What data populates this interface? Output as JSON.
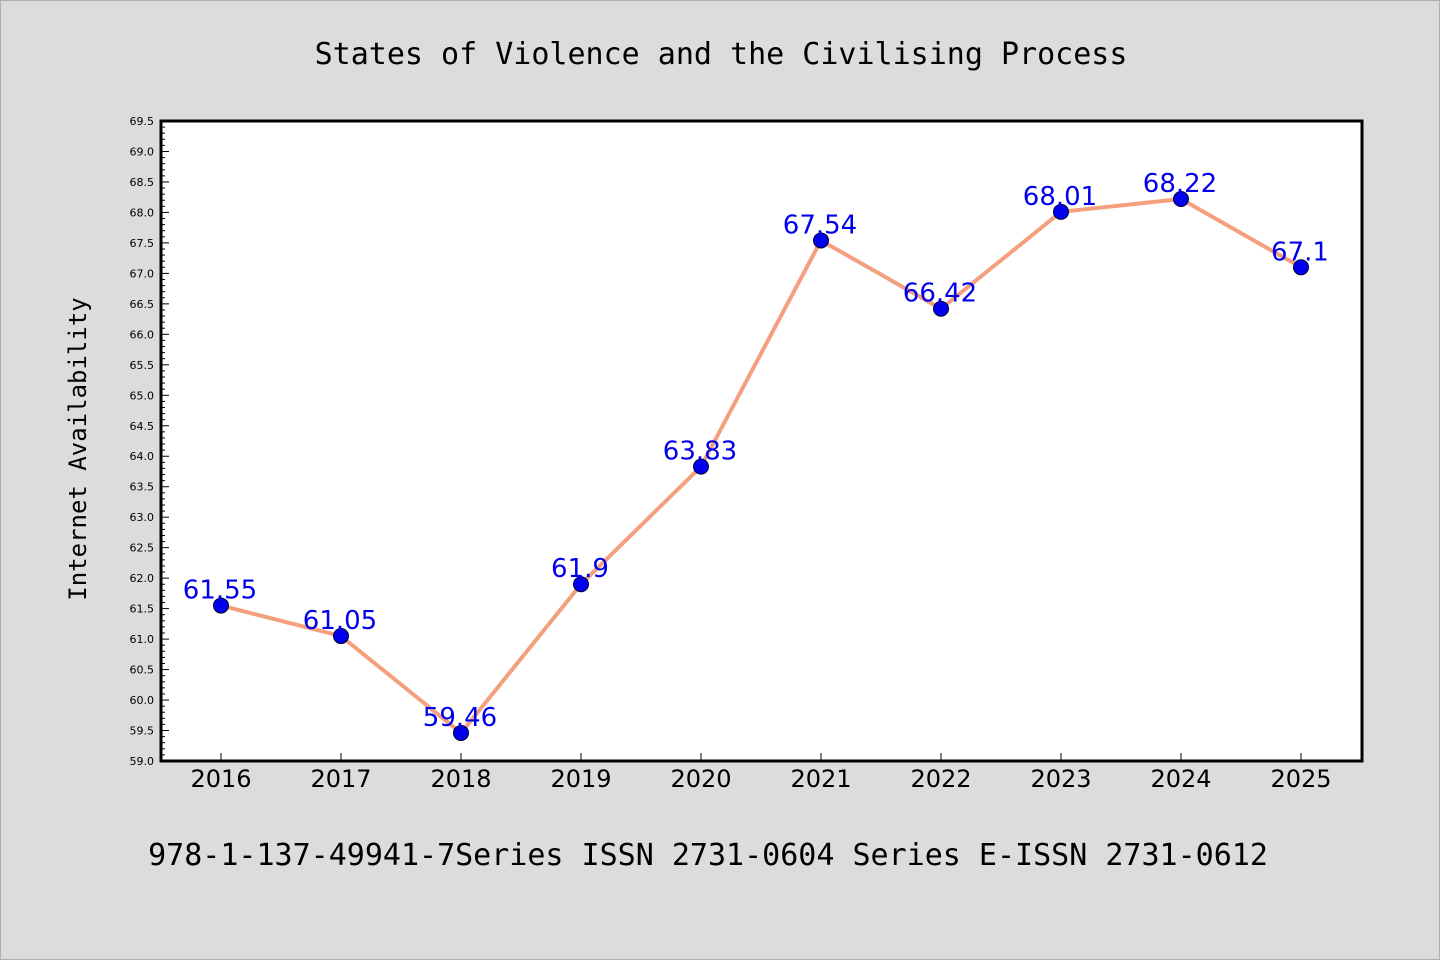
{
  "chart_data": {
    "type": "line",
    "title": "States of Violence and the Civilising Process",
    "ylabel": "Internet Availability",
    "xlabel": "",
    "footer": "978-1-137-49941-7Series ISSN 2731-0604 Series E-ISSN 2731-0612",
    "x": [
      "2016",
      "2017",
      "2018",
      "2019",
      "2020",
      "2021",
      "2022",
      "2023",
      "2024",
      "2025"
    ],
    "values": [
      61.55,
      61.05,
      59.46,
      61.9,
      63.83,
      67.54,
      66.42,
      68.01,
      68.22,
      67.1
    ],
    "value_labels": [
      "61.55",
      "61.05",
      "59.46",
      "61.9",
      "63.83",
      "67.54",
      "66.42",
      "68.01",
      "68.22",
      "67.1"
    ],
    "ylim": [
      59.0,
      69.5
    ],
    "yticks": [
      "59.0",
      "59.5",
      "60.0",
      "60.5",
      "61.0",
      "61.5",
      "62.0",
      "62.5",
      "63.0",
      "63.5",
      "64.0",
      "64.5",
      "65.0",
      "65.5",
      "66.0",
      "66.5",
      "67.0",
      "67.5",
      "68.0",
      "68.5",
      "69.0",
      "69.5"
    ],
    "grid": false,
    "legend": "none",
    "colors": {
      "line": "#f4a07f",
      "marker": "#0000ee",
      "label": "#0000ee",
      "plot_bg": "#ffffff",
      "page_bg": "#dcdcdc"
    }
  }
}
